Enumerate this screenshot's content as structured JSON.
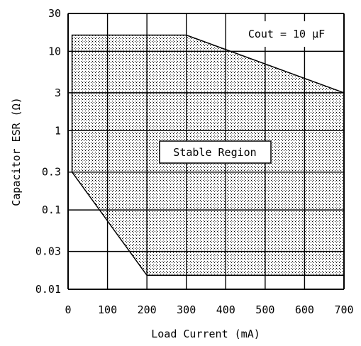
{
  "chart_data": {
    "type": "area",
    "title": "",
    "xlabel": "Load Current (mA)",
    "ylabel": "Capacitor ESR (Ω)",
    "x_scale": "linear",
    "y_scale": "log",
    "xlim": [
      0,
      700
    ],
    "ylim": [
      0.01,
      30
    ],
    "x_ticks": [
      0,
      100,
      200,
      300,
      400,
      500,
      600,
      700
    ],
    "x_tick_labels": [
      "0",
      "100",
      "200",
      "300",
      "400",
      "500",
      "600",
      "700"
    ],
    "y_ticks": [
      30,
      10,
      3,
      1,
      0.3,
      0.1,
      0.03,
      0.01
    ],
    "y_tick_labels": [
      "30",
      "10",
      "3",
      "1",
      "0.3",
      "0.1",
      "0.03",
      "0.01"
    ],
    "grid": true,
    "region": {
      "name": "Stable Region",
      "fill": "dotted hatch",
      "boundary": [
        {
          "x": 10,
          "y": 16
        },
        {
          "x": 300,
          "y": 16
        },
        {
          "x": 700,
          "y": 3
        },
        {
          "x": 700,
          "y": 0.015
        },
        {
          "x": 200,
          "y": 0.015
        },
        {
          "x": 10,
          "y": 0.3
        }
      ]
    },
    "annotations": [
      {
        "text": "Stable Region",
        "x": 350,
        "y": 0.75
      },
      {
        "text": "Cout = 10 μF",
        "position": "top-right"
      }
    ]
  }
}
